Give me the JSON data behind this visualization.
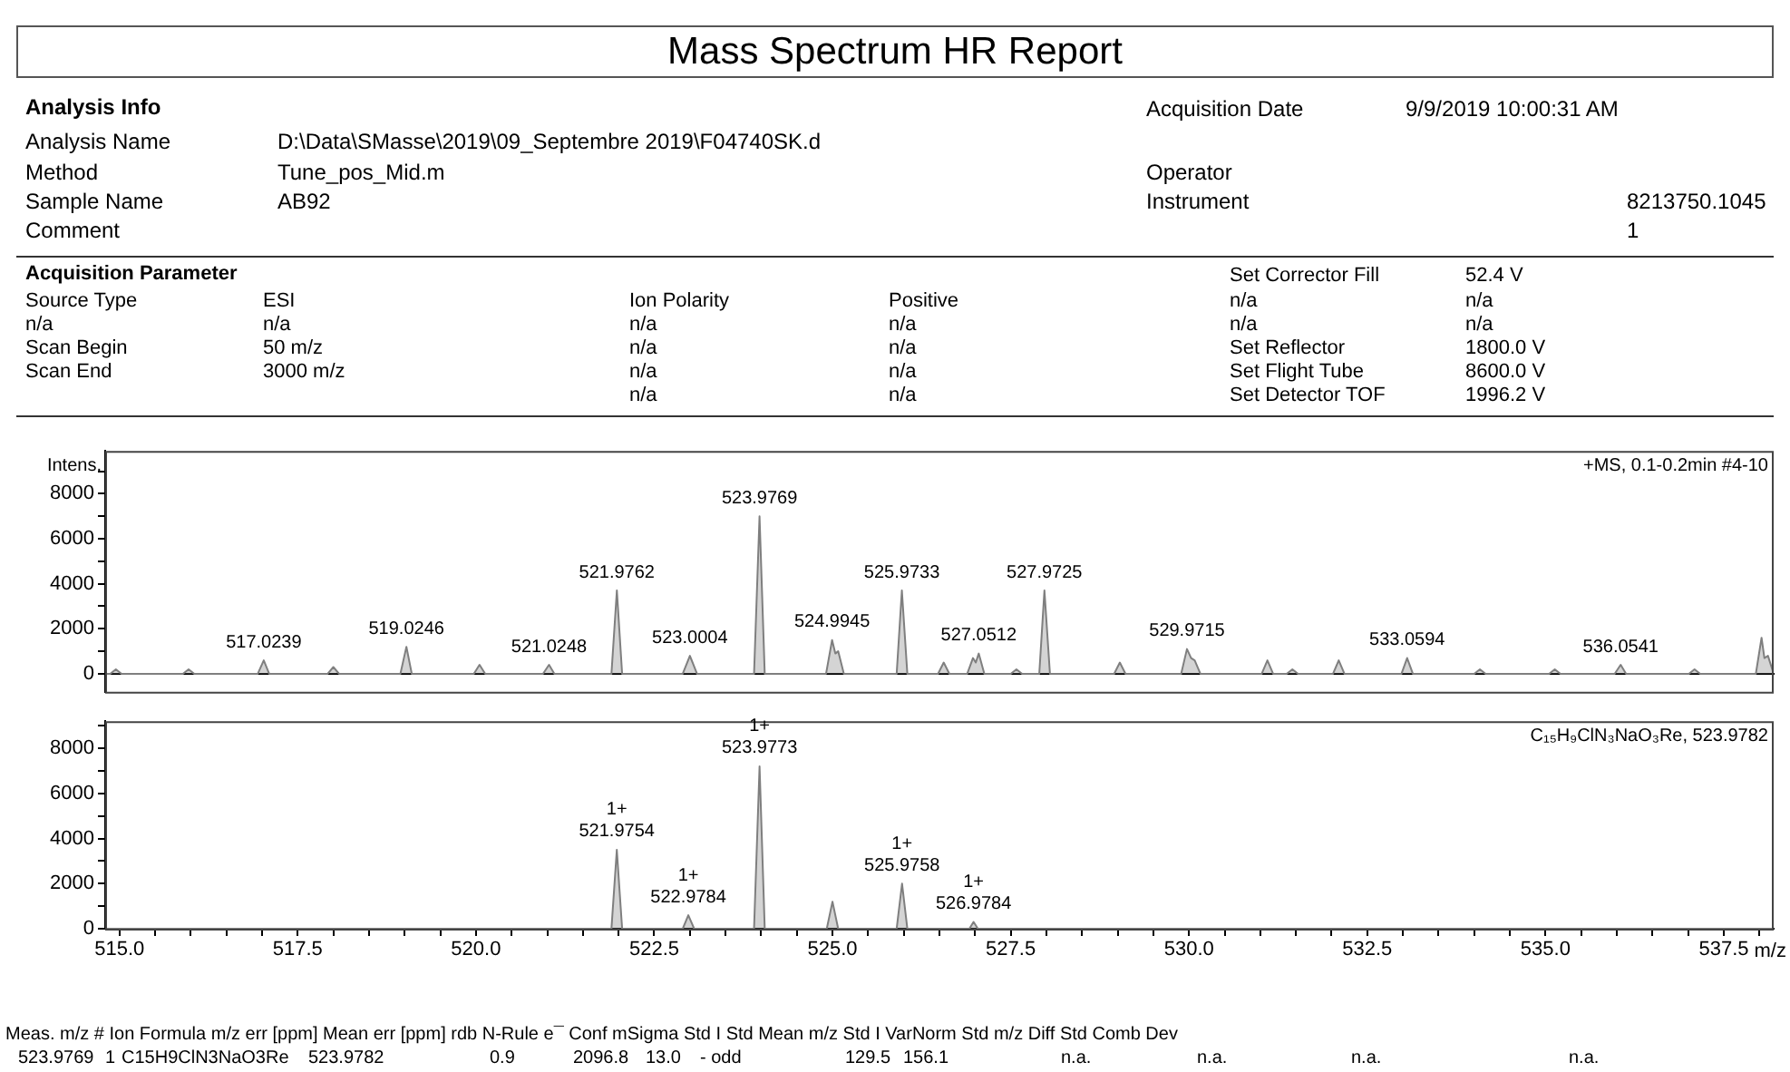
{
  "chart_data": [
    {
      "type": "other",
      "title": "Mass Spectrum HR Report",
      "annotations": [
        "Analysis Info",
        "Acquisition Date",
        "9/9/2019 10:00:31 AM",
        "Analysis Name",
        "D:\\Data\\SMasse\\2019\\09_Septembre 2019\\F04740SK.d",
        "Method",
        "Tune_pos_Mid.m",
        "Operator",
        "Sample Name",
        "AB92",
        "Instrument",
        "8213750.1045",
        "Comment",
        "1",
        "Acquisition Parameter",
        "Set Corrector Fill",
        "52.4 V",
        "Source Type",
        "ESI",
        "Ion Polarity",
        "Positive",
        "n/a",
        "n/a",
        "n/a",
        "n/a",
        "n/a",
        "n/a",
        "n/a",
        "n/a",
        "Scan Begin",
        "50 m/z",
        "n/a",
        "n/a",
        "Set Reflector",
        "1800.0 V",
        "Scan End",
        "3000 m/z",
        "n/a",
        "n/a",
        "Set Flight Tube",
        "8600.0 V",
        "n/a",
        "n/a",
        "Set Detector TOF",
        "1996.2 V"
      ]
    },
    {
      "type": "area",
      "ylabel": "Intens.",
      "xlim": [
        514.8,
        538.2
      ],
      "ylim": [
        -800,
        9900
      ],
      "tick_labels": "y",
      "yticks": [
        0,
        {
          "value": 1000,
          "label": null
        },
        2000,
        {
          "value": 3000,
          "label": null
        },
        4000,
        {
          "value": 5000,
          "label": null
        },
        6000,
        {
          "value": 7000,
          "label": null
        },
        8000,
        {
          "value": 9000,
          "label": null
        }
      ],
      "series": [
        {
          "color": "#7f7f7f",
          "x": [
            514.8,
            514.87,
            514.95,
            515.03,
            515.89,
            515.97,
            516.05,
            516.94,
            517.0239,
            517.1,
            517.92,
            518.0,
            518.08,
            518.94,
            519.0246,
            519.1,
            519.97,
            520.05,
            520.13,
            520.94,
            521.0248,
            521.1,
            521.9,
            521.9762,
            522.05,
            522.9,
            523.0004,
            523.1,
            523.9,
            523.9769,
            524.05,
            524.91,
            524.9945,
            525.04,
            525.08,
            525.16,
            525.9,
            525.9733,
            526.05,
            526.48,
            526.56,
            526.64,
            526.89,
            526.97,
            527.01,
            527.0512,
            527.13,
            527.5,
            527.58,
            527.66,
            527.9,
            527.9725,
            528.05,
            528.95,
            529.03,
            529.11,
            529.89,
            529.9715,
            530.03,
            530.08,
            530.16,
            531.02,
            531.1,
            531.18,
            531.37,
            531.45,
            531.53,
            532.02,
            532.1,
            532.18,
            532.98,
            533.0594,
            533.14,
            534.0,
            534.08,
            534.16,
            535.05,
            535.13,
            535.21,
            535.97,
            536.0541,
            536.13,
            537.01,
            537.09,
            537.17,
            537.95,
            538.03,
            538.07,
            538.12,
            538.2
          ],
          "values": [
            0,
            0,
            200,
            0,
            0,
            200,
            0,
            0,
            600,
            0,
            0,
            300,
            0,
            0,
            1200,
            0,
            0,
            400,
            0,
            0,
            400,
            0,
            0,
            3700,
            0,
            0,
            800,
            0,
            0,
            7000,
            0,
            0,
            1500,
            900,
            1000,
            0,
            0,
            3700,
            0,
            0,
            500,
            0,
            0,
            700,
            500,
            900,
            0,
            0,
            200,
            0,
            0,
            3700,
            0,
            0,
            500,
            0,
            0,
            1100,
            700,
            600,
            0,
            0,
            600,
            0,
            0,
            200,
            0,
            0,
            600,
            0,
            0,
            700,
            0,
            0,
            200,
            0,
            0,
            200,
            0,
            0,
            400,
            0,
            0,
            200,
            0,
            0,
            1600,
            700,
            800,
            0
          ]
        }
      ],
      "annotations": [
        "+MS, 0.1-0.2min #4-10",
        {
          "text": "517.0239",
          "x": 517.0239,
          "y": 600
        },
        {
          "text": "519.0246",
          "x": 519.0246,
          "y": 1200
        },
        {
          "text": "521.0248",
          "x": 521.0248,
          "y": 400
        },
        {
          "text": "521.9762",
          "x": 521.9762,
          "y": 3700
        },
        {
          "text": "523.0004",
          "x": 523.0004,
          "y": 800
        },
        {
          "text": "523.9769",
          "x": 523.9769,
          "y": 7000
        },
        {
          "text": "524.9945",
          "x": 524.9945,
          "y": 1500
        },
        {
          "text": "525.9733",
          "x": 525.9733,
          "y": 3700
        },
        {
          "text": "527.0512",
          "x": 527.0512,
          "y": 900
        },
        {
          "text": "527.9725",
          "x": 527.9725,
          "y": 3700
        },
        {
          "text": "529.9715",
          "x": 529.9715,
          "y": 1100
        },
        {
          "text": "533.0594",
          "x": 533.0594,
          "y": 700
        },
        {
          "text": "536.0541",
          "x": 536.0541,
          "y": 400
        }
      ]
    },
    {
      "type": "area",
      "xlabel": "m/z",
      "xlim": [
        514.8,
        538.2
      ],
      "ylim": [
        0,
        9200
      ],
      "xticks": [
        {
          "value": 515,
          "label": "515.0"
        },
        {
          "value": 515.5,
          "label": null
        },
        {
          "value": 516,
          "label": null
        },
        {
          "value": 516.5,
          "label": null
        },
        {
          "value": 517,
          "label": null
        },
        {
          "value": 517.5,
          "label": "517.5"
        },
        {
          "value": 518,
          "label": null
        },
        {
          "value": 518.5,
          "label": null
        },
        {
          "value": 519,
          "label": null
        },
        {
          "value": 519.5,
          "label": null
        },
        {
          "value": 520,
          "label": "520.0"
        },
        {
          "value": 520.5,
          "label": null
        },
        {
          "value": 521,
          "label": null
        },
        {
          "value": 521.5,
          "label": null
        },
        {
          "value": 522,
          "label": null
        },
        {
          "value": 522.5,
          "label": "522.5"
        },
        {
          "value": 523,
          "label": null
        },
        {
          "value": 523.5,
          "label": null
        },
        {
          "value": 524,
          "label": null
        },
        {
          "value": 524.5,
          "label": null
        },
        {
          "value": 525,
          "label": "525.0"
        },
        {
          "value": 525.5,
          "label": null
        },
        {
          "value": 526,
          "label": null
        },
        {
          "value": 526.5,
          "label": null
        },
        {
          "value": 527,
          "label": null
        },
        {
          "value": 527.5,
          "label": "527.5"
        },
        {
          "value": 528,
          "label": null
        },
        {
          "value": 528.5,
          "label": null
        },
        {
          "value": 529,
          "label": null
        },
        {
          "value": 529.5,
          "label": null
        },
        {
          "value": 530,
          "label": "530.0"
        },
        {
          "value": 530.5,
          "label": null
        },
        {
          "value": 531,
          "label": null
        },
        {
          "value": 531.5,
          "label": null
        },
        {
          "value": 532,
          "label": null
        },
        {
          "value": 532.5,
          "label": "532.5"
        },
        {
          "value": 533,
          "label": null
        },
        {
          "value": 533.5,
          "label": null
        },
        {
          "value": 534,
          "label": null
        },
        {
          "value": 534.5,
          "label": null
        },
        {
          "value": 535,
          "label": "535.0"
        },
        {
          "value": 535.5,
          "label": null
        },
        {
          "value": 536,
          "label": null
        },
        {
          "value": 536.5,
          "label": null
        },
        {
          "value": 537,
          "label": null
        },
        {
          "value": 537.5,
          "label": "537.5"
        },
        {
          "value": 538,
          "label": null
        }
      ],
      "yticks": [
        0,
        {
          "value": 1000,
          "label": null
        },
        2000,
        {
          "value": 3000,
          "label": null
        },
        4000,
        {
          "value": 5000,
          "label": null
        },
        6000,
        {
          "value": 7000,
          "label": null
        },
        8000,
        {
          "value": 9000,
          "label": null
        }
      ],
      "series": [
        {
          "color": "#7f7f7f",
          "x": [
            514.8,
            521.9,
            521.9754,
            522.05,
            522.9,
            522.9784,
            523.06,
            523.9,
            523.9773,
            524.05,
            524.92,
            525.0,
            525.08,
            525.9,
            525.9758,
            526.05,
            526.92,
            526.9784,
            527.04,
            538.2
          ],
          "values": [
            0,
            0,
            3500,
            0,
            0,
            600,
            0,
            0,
            7200,
            0,
            0,
            1200,
            0,
            0,
            2000,
            0,
            0,
            300,
            0,
            0
          ]
        }
      ],
      "annotations": [
        "C₁₅H₉ClN₃NaO₃Re, 523.9782",
        {
          "text": "1+\n521.9754",
          "x": 521.9754,
          "y": 3500
        },
        {
          "text": "1+\n522.9784",
          "x": 522.9784,
          "y": 600
        },
        {
          "text": "1+\n523.9773",
          "x": 523.9773,
          "y": 7200
        },
        {
          "text": "1+\n525.9758",
          "x": 525.9758,
          "y": 2000
        },
        {
          "text": "1+\n526.9784",
          "x": 526.9784,
          "y": 300
        }
      ]
    },
    {
      "type": "other",
      "annotations": [
        "Meas. m/z # Ion Formula m/z err [ppm] Mean err [ppm] rdb N-Rule e¯ Conf mSigma Std I Std Mean m/z Std I VarNorm Std m/z Diff Std Comb Dev",
        "523.9769",
        "1",
        "C15H9ClN3NaO3Re",
        "523.9782",
        "0.9",
        "2096.8",
        "13.0",
        "- odd",
        "129.5",
        "156.1",
        "n.a.",
        "n.a.",
        "n.a.",
        "n.a."
      ]
    }
  ]
}
